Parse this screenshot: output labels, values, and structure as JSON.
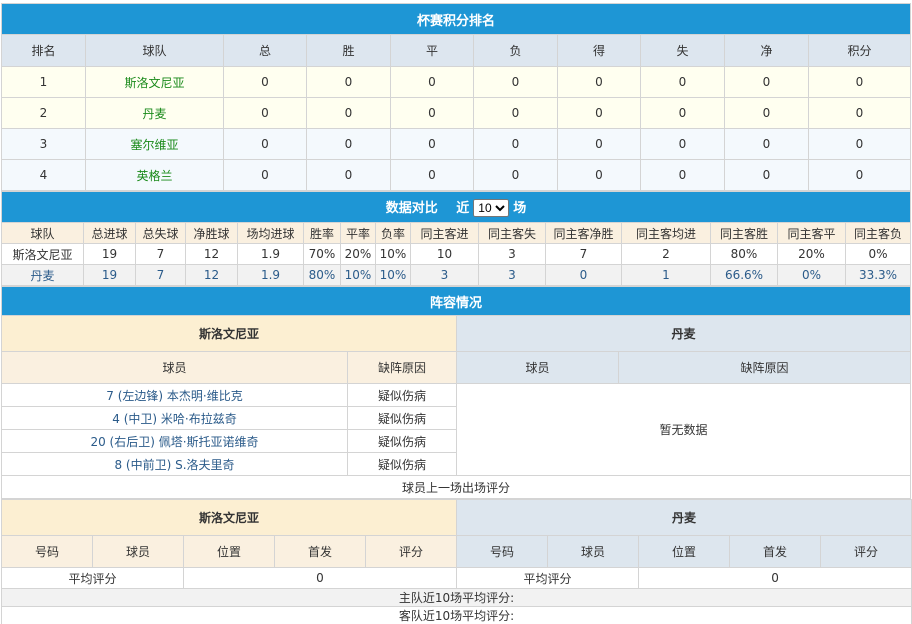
{
  "standings": {
    "title": "杯赛积分排名",
    "headers": [
      "排名",
      "球队",
      "总",
      "胜",
      "平",
      "负",
      "得",
      "失",
      "净",
      "积分"
    ],
    "rows": [
      [
        "1",
        "斯洛文尼亚",
        "0",
        "0",
        "0",
        "0",
        "0",
        "0",
        "0",
        "0"
      ],
      [
        "2",
        "丹麦",
        "0",
        "0",
        "0",
        "0",
        "0",
        "0",
        "0",
        "0"
      ],
      [
        "3",
        "塞尔维亚",
        "0",
        "0",
        "0",
        "0",
        "0",
        "0",
        "0",
        "0"
      ],
      [
        "4",
        "英格兰",
        "0",
        "0",
        "0",
        "0",
        "0",
        "0",
        "0",
        "0"
      ]
    ]
  },
  "compare": {
    "title": "数据对比",
    "near": "近",
    "select_value": "10",
    "unit": "场",
    "headers": [
      "球队",
      "总进球",
      "总失球",
      "净胜球",
      "场均进球",
      "胜率",
      "平率",
      "负率",
      "同主客进",
      "同主客失",
      "同主客净胜",
      "同主客均进",
      "同主客胜",
      "同主客平",
      "同主客负"
    ],
    "rows": [
      [
        "斯洛文尼亚",
        "19",
        "7",
        "12",
        "1.9",
        "70%",
        "20%",
        "10%",
        "10",
        "3",
        "7",
        "2",
        "80%",
        "20%",
        "0%"
      ],
      [
        "丹麦",
        "19",
        "7",
        "12",
        "1.9",
        "80%",
        "10%",
        "10%",
        "3",
        "3",
        "0",
        "1",
        "66.6%",
        "0%",
        "33.3%"
      ]
    ]
  },
  "lineup": {
    "title": "阵容情况",
    "home": "斯洛文尼亚",
    "away": "丹麦",
    "col_player": "球员",
    "col_reason": "缺阵原因",
    "home_rows": [
      [
        "7 (左边锋) 本杰明·维比克",
        "疑似伤病"
      ],
      [
        "4 (中卫) 米哈·布拉兹奇",
        "疑似伤病"
      ],
      [
        "20 (右后卫) 佩塔·斯托亚诺维奇",
        "疑似伤病"
      ],
      [
        "8 (中前卫) S.洛夫里奇",
        "疑似伤病"
      ]
    ],
    "away_empty": "暂无数据"
  },
  "rating": {
    "title": "球员上一场出场评分",
    "home": "斯洛文尼亚",
    "away": "丹麦",
    "headers": [
      "号码",
      "球员",
      "位置",
      "首发",
      "评分"
    ],
    "avg_label": "平均评分",
    "home_avg": "0",
    "away_avg": "0",
    "home_recent": "主队近10场平均评分:",
    "away_recent": "客队近10场平均评分:"
  }
}
